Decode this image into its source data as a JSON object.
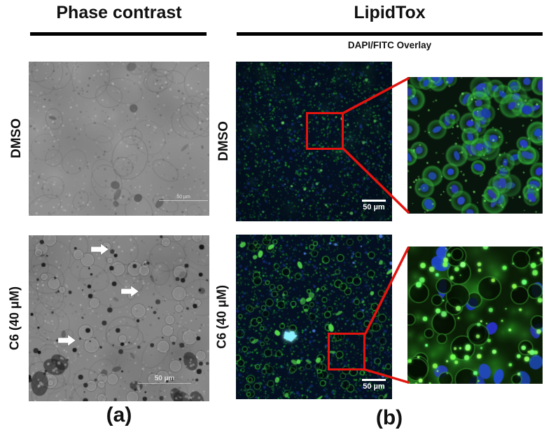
{
  "figure": {
    "columns": {
      "left_title": "Phase contrast",
      "right_title": "LipidTox",
      "right_subtitle": "DAPI/FITC Overlay"
    },
    "rows": [
      {
        "label": "DMSO"
      },
      {
        "label": "C6 (40 μM)"
      }
    ],
    "panel_labels": {
      "a": "(a)",
      "b": "(b)"
    },
    "scale_bar_label": "50 µm",
    "arrows": {
      "count": 3,
      "direction": "right",
      "color": "#ffffff"
    },
    "colors": {
      "roi_red": "#e3140f",
      "rule_black": "#000000",
      "phase_gray_light": "#8f8f8f",
      "phase_gray_dark": "#858585",
      "fluor_background": "#041021",
      "fitc_green": "#3fd24c",
      "dapi_blue": "#2a4fd0",
      "cyan_highlight": "#8df2ff",
      "scalebar_white": "#ffffff"
    }
  }
}
